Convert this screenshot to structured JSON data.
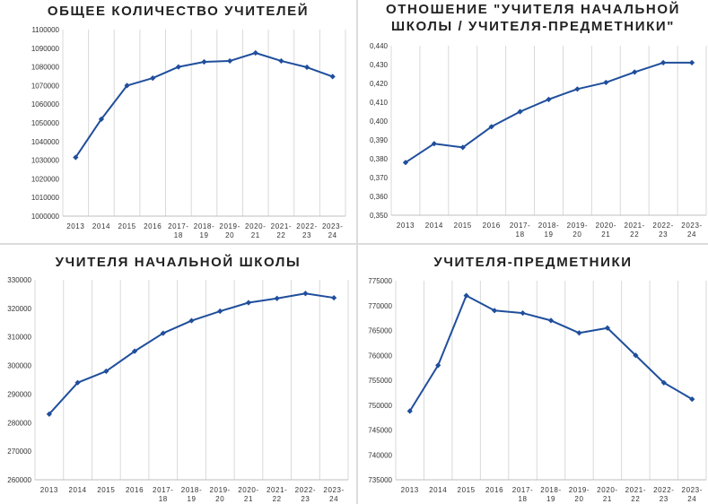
{
  "chart_data": [
    {
      "type": "line",
      "title": [
        "ОБЩЕЕ КОЛИЧЕСТВО УЧИТЕЛЕЙ"
      ],
      "x": [
        "2013",
        "2014",
        "2015",
        "2016",
        "2017-18",
        "2018-19",
        "2019-20",
        "2020-21",
        "2021-22",
        "2022-23",
        "2023-24"
      ],
      "y": [
        1031500,
        1052000,
        1070000,
        1074000,
        1080000,
        1082700,
        1083200,
        1087500,
        1083200,
        1079800,
        1074800
      ],
      "ylim": [
        1000000,
        1100000
      ],
      "yticks": [
        "1000000",
        "1010000",
        "1020000",
        "1030000",
        "1040000",
        "1050000",
        "1060000",
        "1070000",
        "1080000",
        "1090000",
        "1100000"
      ],
      "grid": "vertical",
      "color": "#1f4e9c"
    },
    {
      "type": "line",
      "title": [
        "ОТНОШЕНИЕ \"УЧИТЕЛЯ НАЧАЛЬНОЙ",
        "ШКОЛЫ / УЧИТЕЛЯ-ПРЕДМЕТНИКИ\""
      ],
      "x": [
        "2013",
        "2014",
        "2015",
        "2016",
        "2017-18",
        "2018-19",
        "2019-20",
        "2020-21",
        "2021-22",
        "2022-23",
        "2023-24"
      ],
      "y": [
        0.378,
        0.388,
        0.386,
        0.397,
        0.405,
        0.4115,
        0.417,
        0.4205,
        0.426,
        0.431,
        0.431
      ],
      "ylim": [
        0.35,
        0.44
      ],
      "yticks": [
        "0,350",
        "0,360",
        "0,370",
        "0,380",
        "0,390",
        "0,400",
        "0,410",
        "0,420",
        "0,430",
        "0,440"
      ],
      "grid": "vertical",
      "color": "#1f4e9c"
    },
    {
      "type": "line",
      "title": [
        "УЧИТЕЛЯ НАЧАЛЬНОЙ ШКОЛЫ"
      ],
      "x": [
        "2013",
        "2014",
        "2015",
        "2016",
        "2017-18",
        "2018-19",
        "2019-20",
        "2020-21",
        "2021-22",
        "2022-23",
        "2023-24"
      ],
      "y": [
        283000,
        294000,
        298000,
        305000,
        311300,
        315700,
        319000,
        322000,
        323500,
        325200,
        323700
      ],
      "ylim": [
        260000,
        330000
      ],
      "yticks": [
        "260000",
        "270000",
        "280000",
        "290000",
        "300000",
        "310000",
        "320000",
        "330000"
      ],
      "grid": "vertical",
      "color": "#1f4e9c"
    },
    {
      "type": "line",
      "title": [
        "УЧИТЕЛЯ-ПРЕДМЕТНИКИ"
      ],
      "x": [
        "2013",
        "2014",
        "2015",
        "2016",
        "2017-18",
        "2018-19",
        "2019-20",
        "2020-21",
        "2021-22",
        "2022-23",
        "2023-24"
      ],
      "y": [
        748800,
        758000,
        772000,
        769000,
        768500,
        767000,
        764500,
        765500,
        760000,
        754500,
        751200
      ],
      "ylim": [
        735000,
        775000
      ],
      "yticks": [
        "735000",
        "740000",
        "745000",
        "750000",
        "755000",
        "760000",
        "765000",
        "770000",
        "775000"
      ],
      "grid": "vertical",
      "color": "#1f4e9c"
    }
  ]
}
